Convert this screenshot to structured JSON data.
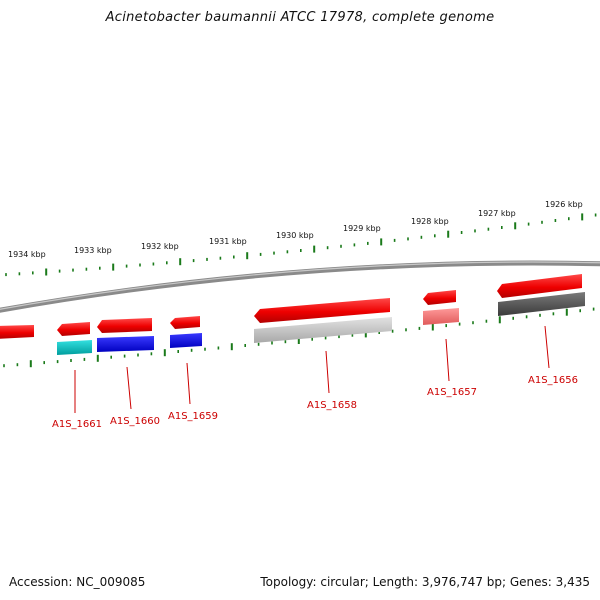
{
  "title": "Acinetobacter baumannii ATCC 17978, complete genome",
  "footer": {
    "accession": "Accession: NC_009085",
    "summary": "Topology: circular; Length: 3,976,747 bp; Genes: 3,435"
  },
  "colors": {
    "backbone": "#8a8a8a",
    "tick": "#1a7a1a",
    "gene_label": "#cc0000",
    "cds": "#ee1111"
  },
  "scale_labels": [
    "1934 kbp",
    "1933 kbp",
    "1932 kbp",
    "1931 kbp",
    "1930 kbp",
    "1929 kbp",
    "1928 kbp",
    "1927 kbp",
    "1926 kbp"
  ],
  "gene_labels": [
    "A1S_1661",
    "A1S_1660",
    "A1S_1659",
    "A1S_1658",
    "A1S_1657",
    "A1S_1656"
  ]
}
